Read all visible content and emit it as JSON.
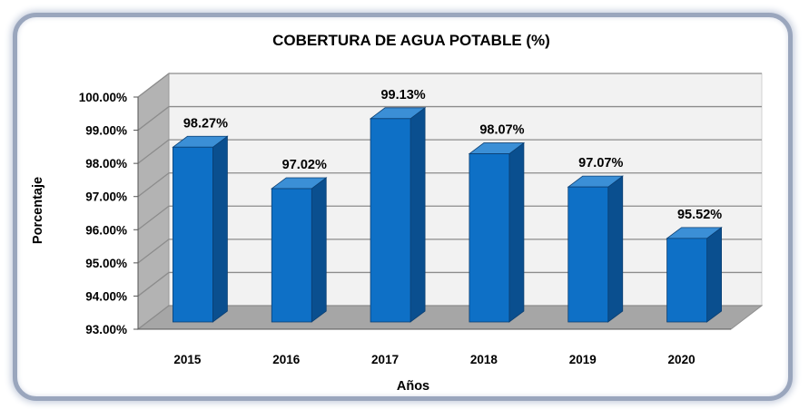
{
  "chart_data": {
    "type": "bar",
    "title": "COBERTURA DE AGUA POTABLE (%)",
    "xlabel": "Años",
    "ylabel": "Porcentaje",
    "categories": [
      "2015",
      "2016",
      "2017",
      "2018",
      "2019",
      "2020"
    ],
    "values": [
      98.27,
      97.02,
      99.13,
      98.07,
      97.07,
      95.52
    ],
    "data_labels": [
      "98.27%",
      "97.02%",
      "99.13%",
      "98.07%",
      "97.07%",
      "95.52%"
    ],
    "yticks": [
      "93.00%",
      "94.00%",
      "95.00%",
      "96.00%",
      "97.00%",
      "98.00%",
      "99.00%",
      "100.00%"
    ],
    "ylim": [
      93,
      100
    ],
    "grid": true,
    "legend": "none",
    "colors": {
      "bar_front": "#0e70c6",
      "bar_side": "#0a4f8f",
      "bar_top": "#3b8fd6",
      "wall": "#f2f2f2",
      "side_wall": "#b3b3b3",
      "floor": "#a6a6a6",
      "grid": "#8c8c8c"
    }
  }
}
